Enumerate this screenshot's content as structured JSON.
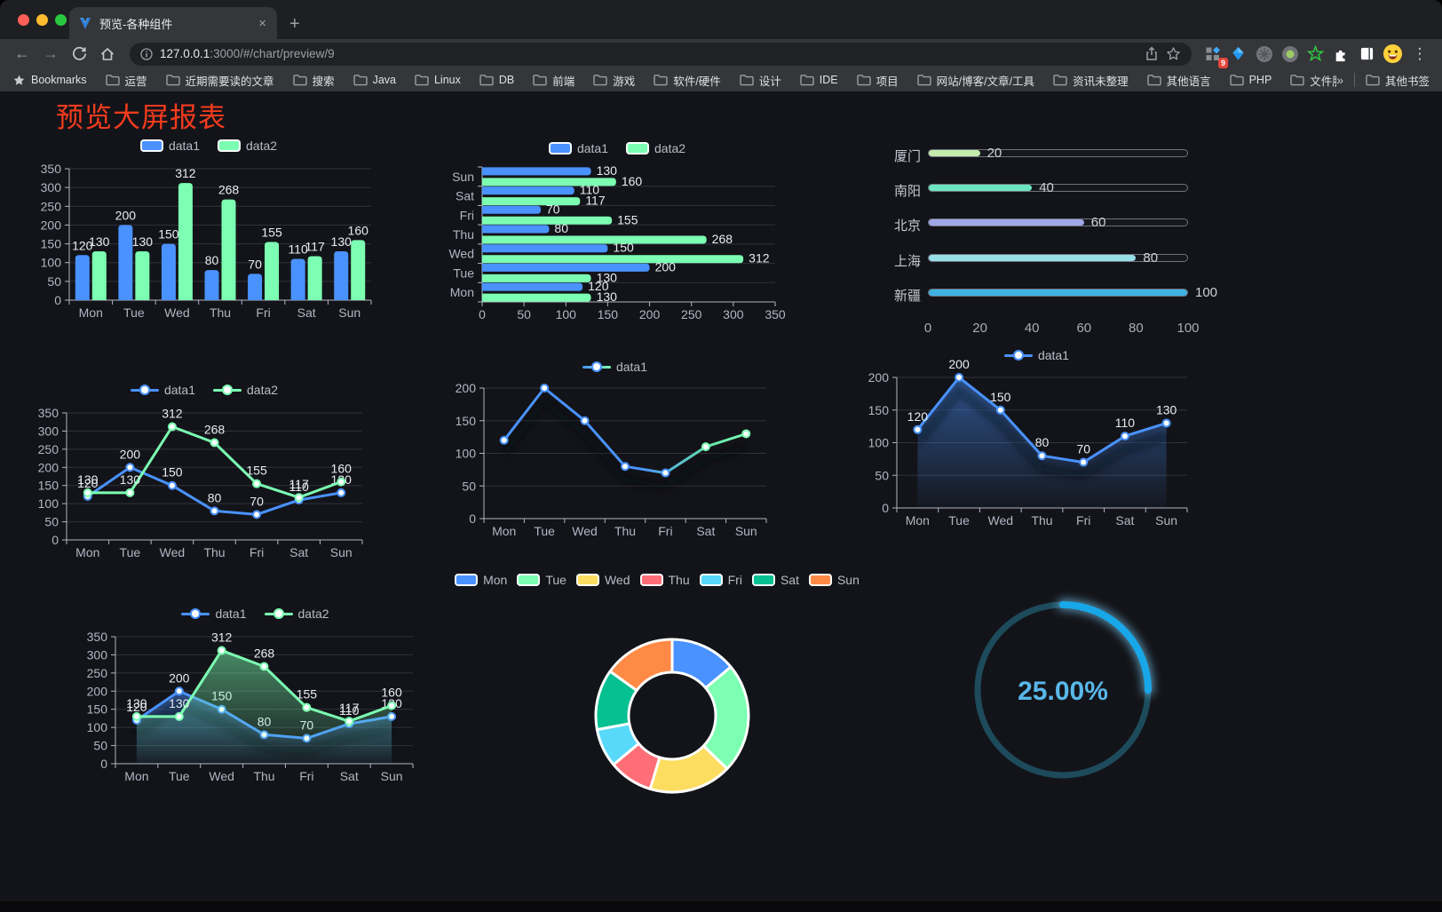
{
  "browser": {
    "traffic_lights": [
      "#ff5f57",
      "#febc2e",
      "#28c840"
    ],
    "tab": {
      "title": "预览-各种组件"
    },
    "url": {
      "host": "127.0.0.1",
      "rest": ":3000/#/chart/preview/9"
    },
    "bookmarks_bar": {
      "bookmarks_label": "Bookmarks",
      "folders": [
        "运营",
        "近期需要读的文章",
        "搜索",
        "Java",
        "Linux",
        "DB",
        "前端",
        "游戏",
        "软件/硬件",
        "设计",
        "IDE",
        "项目",
        "网站/博客/文章/工具",
        "资讯未整理",
        "其他语言",
        "PHP",
        "文件服务器"
      ],
      "overflow": "»",
      "other_bookmarks": "其他书签"
    },
    "extensions_badge": "9",
    "icons": {
      "close": "×",
      "new_tab": "+",
      "menu": "⋮",
      "back": "←",
      "forward": "→"
    }
  },
  "page": {
    "title": "预览大屏报表",
    "title_color": "#f43b1e",
    "background": "#131419"
  },
  "chart_data": [
    {
      "id": "bar-grouped",
      "type": "bar",
      "legend": "pill",
      "categories": [
        "Mon",
        "Tue",
        "Wed",
        "Thu",
        "Fri",
        "Sat",
        "Sun"
      ],
      "series": [
        {
          "name": "data1",
          "color": "#4992ff",
          "values": [
            120,
            200,
            150,
            80,
            70,
            110,
            130
          ]
        },
        {
          "name": "data2",
          "color": "#7cffb2",
          "values": [
            130,
            130,
            312,
            268,
            155,
            117,
            160
          ]
        }
      ],
      "ylim": [
        0,
        350
      ],
      "yticks": [
        0,
        50,
        100,
        150,
        200,
        250,
        300,
        350
      ],
      "labels": true
    },
    {
      "id": "bar-horizontal",
      "type": "hbar",
      "legend": "pill",
      "categories": [
        "Sun",
        "Sat",
        "Fri",
        "Thu",
        "Wed",
        "Tue",
        "Mon"
      ],
      "series": [
        {
          "name": "data1",
          "color": "#4992ff",
          "values": [
            130,
            110,
            70,
            80,
            150,
            200,
            120
          ]
        },
        {
          "name": "data2",
          "color": "#7cffb2",
          "values": [
            160,
            117,
            155,
            268,
            312,
            130,
            130
          ]
        }
      ],
      "xlim": [
        0,
        350
      ],
      "xticks": [
        0,
        50,
        100,
        150,
        200,
        250,
        300,
        350
      ],
      "labels": true
    },
    {
      "id": "progress-list",
      "type": "progress",
      "max": 100,
      "items": [
        {
          "label": "厦门",
          "value": 20,
          "color": "#c4ebad"
        },
        {
          "label": "南阳",
          "value": 40,
          "color": "#6be6c1"
        },
        {
          "label": "北京",
          "value": 60,
          "color": "#a0a7e6"
        },
        {
          "label": "上海",
          "value": 80,
          "color": "#96dee8"
        },
        {
          "label": "新疆",
          "value": 100,
          "color": "#3fb1e3"
        }
      ],
      "xticks": [
        0,
        20,
        40,
        60,
        80,
        100
      ]
    },
    {
      "id": "line-dual",
      "type": "line",
      "legend": "line",
      "categories": [
        "Mon",
        "Tue",
        "Wed",
        "Thu",
        "Fri",
        "Sat",
        "Sun"
      ],
      "series": [
        {
          "name": "data1",
          "color": "#4992ff",
          "values": [
            120,
            200,
            150,
            80,
            70,
            110,
            130
          ]
        },
        {
          "name": "data2",
          "color": "#7cffb2",
          "values": [
            130,
            130,
            312,
            268,
            155,
            117,
            160
          ]
        }
      ],
      "ylim": [
        0,
        350
      ],
      "yticks": [
        0,
        50,
        100,
        150,
        200,
        250,
        300,
        350
      ],
      "labels": true
    },
    {
      "id": "line-gradient",
      "type": "line",
      "legend": "line",
      "categories": [
        "Mon",
        "Tue",
        "Wed",
        "Thu",
        "Fri",
        "Sat",
        "Sun"
      ],
      "series": [
        {
          "name": "data1",
          "color": "#4992ff",
          "color2": "#7cffb2",
          "gradient": true,
          "shadow": true,
          "values": [
            120,
            200,
            150,
            80,
            70,
            110,
            130
          ]
        }
      ],
      "ylim": [
        0,
        200
      ],
      "yticks": [
        0,
        50,
        100,
        150,
        200
      ],
      "labels": false
    },
    {
      "id": "area-single",
      "type": "line",
      "legend": "line",
      "categories": [
        "Mon",
        "Tue",
        "Wed",
        "Thu",
        "Fri",
        "Sat",
        "Sun"
      ],
      "series": [
        {
          "name": "data1",
          "color": "#4992ff",
          "area": true,
          "shadow": true,
          "values": [
            120,
            200,
            150,
            80,
            70,
            110,
            130
          ]
        }
      ],
      "ylim": [
        0,
        200
      ],
      "yticks": [
        0,
        50,
        100,
        150,
        200
      ],
      "labels": true
    },
    {
      "id": "area-dual",
      "type": "line",
      "legend": "line",
      "categories": [
        "Mon",
        "Tue",
        "Wed",
        "Thu",
        "Fri",
        "Sat",
        "Sun"
      ],
      "series": [
        {
          "name": "data1",
          "color": "#4992ff",
          "area": true,
          "shadow": true,
          "values": [
            120,
            200,
            150,
            80,
            70,
            110,
            130
          ]
        },
        {
          "name": "data2",
          "color": "#7cffb2",
          "area": true,
          "values": [
            130,
            130,
            312,
            268,
            155,
            117,
            160
          ]
        }
      ],
      "ylim": [
        0,
        350
      ],
      "yticks": [
        0,
        50,
        100,
        150,
        200,
        250,
        300,
        350
      ],
      "labels": true
    },
    {
      "id": "pie-donut",
      "type": "pie",
      "legend": "pill",
      "categories": [
        "Mon",
        "Tue",
        "Wed",
        "Thu",
        "Fri",
        "Sat",
        "Sun"
      ],
      "values": [
        120,
        200,
        150,
        80,
        70,
        110,
        130
      ],
      "colors": [
        "#4992ff",
        "#7cffb2",
        "#fddd60",
        "#ff6e76",
        "#58d9f9",
        "#05c091",
        "#ff8a45"
      ]
    },
    {
      "id": "gauge",
      "type": "gauge",
      "percent": 25,
      "label": "25.00%",
      "arc_color": "#18a7e8",
      "track_color": "#1d4b5c",
      "text_color": "#58b7e9"
    }
  ]
}
